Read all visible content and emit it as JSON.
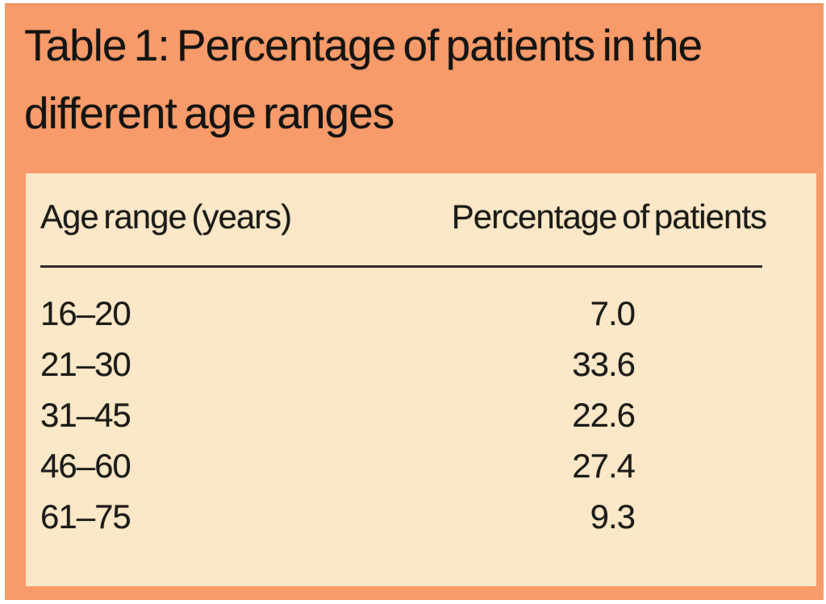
{
  "title": "Table 1: Percentage of patients in the different age ranges",
  "colors": {
    "panel_orange": "#f89b6a",
    "sheet_peach": "#fbe8c8",
    "text": "#141412",
    "rule": "#2e2e28",
    "scan_margin": "#ffffff"
  },
  "table": {
    "columns": [
      "Age range (years)",
      "Percentage of patients"
    ],
    "rows": [
      {
        "age_range": "16–20",
        "percentage": "7.0"
      },
      {
        "age_range": "21–30",
        "percentage": "33.6"
      },
      {
        "age_range": "31–45",
        "percentage": "22.6"
      },
      {
        "age_range": "46–60",
        "percentage": "27.4"
      },
      {
        "age_range": "61–75",
        "percentage": "9.3"
      }
    ]
  },
  "chart_data": {
    "type": "table",
    "title": "Table 1: Percentage of patients in the different age ranges",
    "columns": [
      "Age range (years)",
      "Percentage of patients"
    ],
    "rows": [
      [
        "16–20",
        7.0
      ],
      [
        "21–30",
        33.6
      ],
      [
        "31–45",
        22.6
      ],
      [
        "46–60",
        27.4
      ],
      [
        "61–75",
        9.3
      ]
    ]
  }
}
